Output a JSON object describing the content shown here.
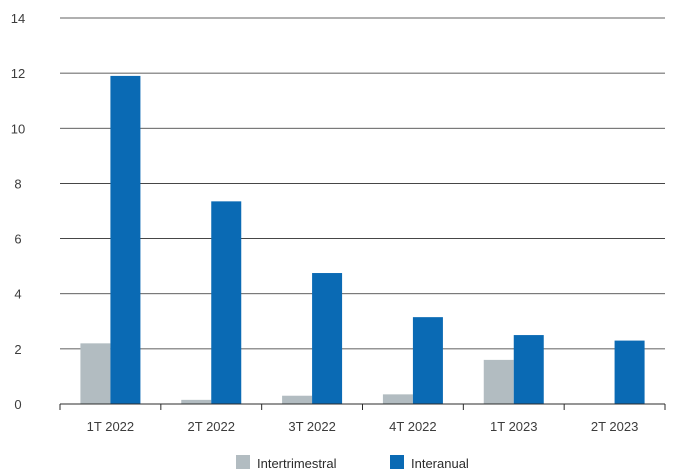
{
  "chart_data": {
    "type": "bar",
    "title": "",
    "xlabel": "",
    "ylabel": "",
    "categories": [
      "1T 2022",
      "2T 2022",
      "3T 2022",
      "4T 2022",
      "1T 2023",
      "2T 2023"
    ],
    "series": [
      {
        "name": "Intertrimestral",
        "color": "#b2bcc1",
        "values": [
          2.2,
          0.15,
          0.3,
          0.35,
          1.6,
          0.0
        ]
      },
      {
        "name": "Interanual",
        "color": "#0a6ab4",
        "values": [
          11.9,
          7.35,
          4.75,
          3.15,
          2.5,
          2.3
        ]
      }
    ],
    "ylim": [
      0,
      14
    ],
    "yticks": [
      0,
      2,
      4,
      6,
      8,
      10,
      12,
      14
    ],
    "grid": true,
    "legend_position": "bottom"
  }
}
